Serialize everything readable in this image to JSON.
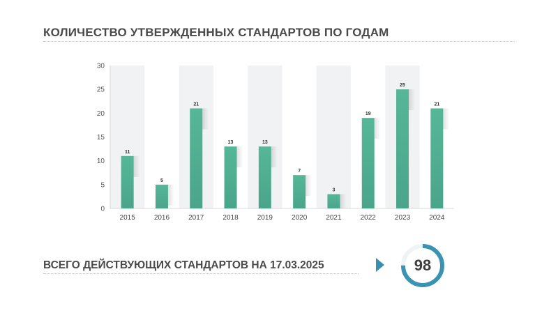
{
  "header": {
    "title": "КОЛИЧЕСТВО УТВЕРЖДЕННЫХ СТАНДАРТОВ ПО ГОДАМ"
  },
  "chart_data": {
    "type": "bar",
    "categories": [
      "2015",
      "2016",
      "2017",
      "2018",
      "2019",
      "2020",
      "2021",
      "2022",
      "2023",
      "2024"
    ],
    "values": [
      11,
      5,
      21,
      13,
      13,
      7,
      3,
      19,
      25,
      21
    ],
    "ylim": [
      0,
      30
    ],
    "yticks": [
      0,
      5,
      10,
      15,
      20,
      25,
      30
    ],
    "ytick_labels": [
      "0",
      "5",
      "10",
      "15",
      "20",
      "25",
      "30"
    ],
    "legend": "none",
    "grid": false,
    "bar_color": "#4aa58a"
  },
  "summary": {
    "label": "ВСЕГО ДЕЙСТВУЮЩИХ СТАНДАРТОВ НА 17.03.2025",
    "value": "98",
    "gauge_fraction": 0.75,
    "gauge_color": "#3b93b3"
  }
}
